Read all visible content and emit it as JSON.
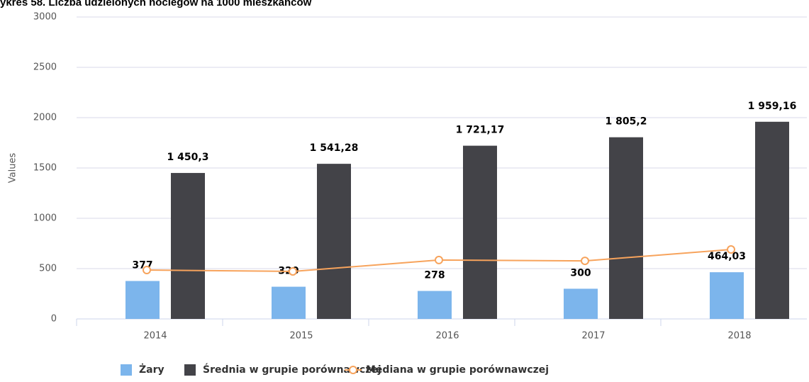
{
  "chart_data": {
    "type": "bar",
    "title": "ykres 58. Liczba udzielonych noclegów na 1000 mieszkańców",
    "y_label": "Values",
    "categories": [
      "2014",
      "2015",
      "2016",
      "2017",
      "2018"
    ],
    "series": [
      {
        "name": "Żary",
        "color": "#7cb5ec",
        "type": "bar",
        "values": [
          377,
          320,
          278,
          300,
          464.03
        ],
        "value_labels": [
          "377",
          "320",
          "278",
          "300",
          "464,03"
        ]
      },
      {
        "name": "Średnia w grupie porównawczej",
        "color": "#434348",
        "type": "bar",
        "values": [
          1450.3,
          1541.28,
          1721.17,
          1805.2,
          1959.16
        ],
        "value_labels": [
          "1 450,3",
          "1 541,28",
          "1 721,17",
          "1 805,2",
          "1 959,16"
        ]
      },
      {
        "name": "Mediana w grupie porównawczej",
        "color": "#f7a35c",
        "type": "line",
        "values": [
          486,
          472,
          585,
          577,
          690
        ]
      }
    ],
    "ylim": [
      0,
      3000
    ],
    "yticks": [
      0,
      500,
      1000,
      1500,
      2000,
      2500,
      3000
    ],
    "grid": true,
    "legend": "bottom"
  }
}
